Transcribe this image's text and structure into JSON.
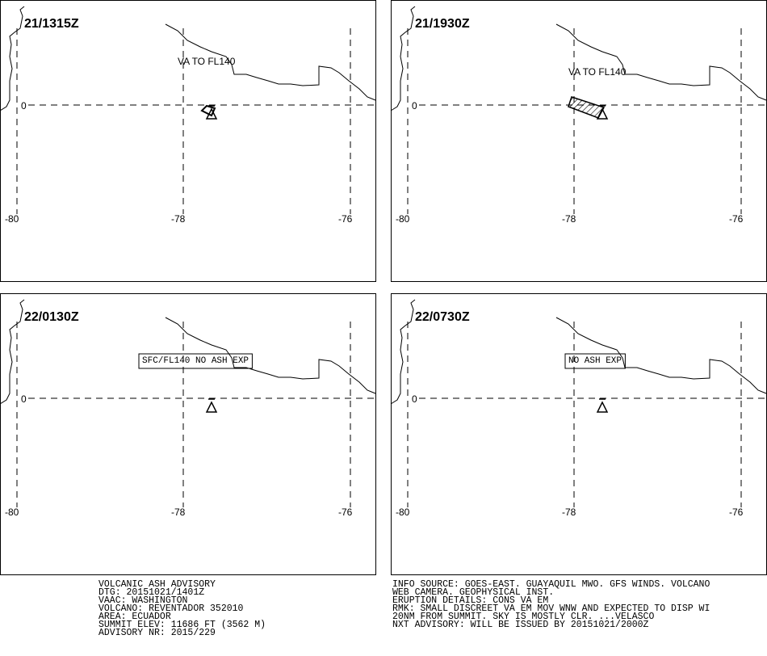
{
  "lon_labels": [
    -80,
    -78,
    -76
  ],
  "lat_label": 0,
  "panels": [
    {
      "time": "21/1315Z",
      "annotation": "VA TO FL140",
      "annotation_boxed": false,
      "ash": "small"
    },
    {
      "time": "21/1930Z",
      "annotation": "VA TO FL140",
      "annotation_boxed": false,
      "ash": "large"
    },
    {
      "time": "22/0130Z",
      "annotation": "SFC/FL140 NO ASH EXP",
      "annotation_boxed": true,
      "ash": "none"
    },
    {
      "time": "22/0730Z",
      "annotation": "NO ASH EXP",
      "annotation_boxed": true,
      "ash": "none"
    }
  ],
  "left_text": [
    "VOLCANIC ASH ADVISORY",
    "DTG: 20151021/1401Z",
    "VAAC: WASHINGTON",
    "VOLCANO: REVENTADOR 352010",
    "AREA: ECUADOR",
    "SUMMIT ELEV: 11686 FT (3562 M)",
    "ADVISORY NR: 2015/229"
  ],
  "right_text": [
    "INFO SOURCE: GOES-EAST. GUAYAQUIL MWO. GFS WINDS. VOLCANO",
    "WEB CAMERA. GEOPHYSICAL INST.",
    "ERUPTION DETAILS: CONS VA EM",
    "RMK: SMALL DISCREET VA EM MOV WNW AND EXPECTED TO DISP WI",
    "20NM FROM SUMMIT. SKY IS MOSTLY CLR. ...VELASCO",
    "NXT ADVISORY: WILL BE ISSUED BY 20151021/2000Z"
  ]
}
